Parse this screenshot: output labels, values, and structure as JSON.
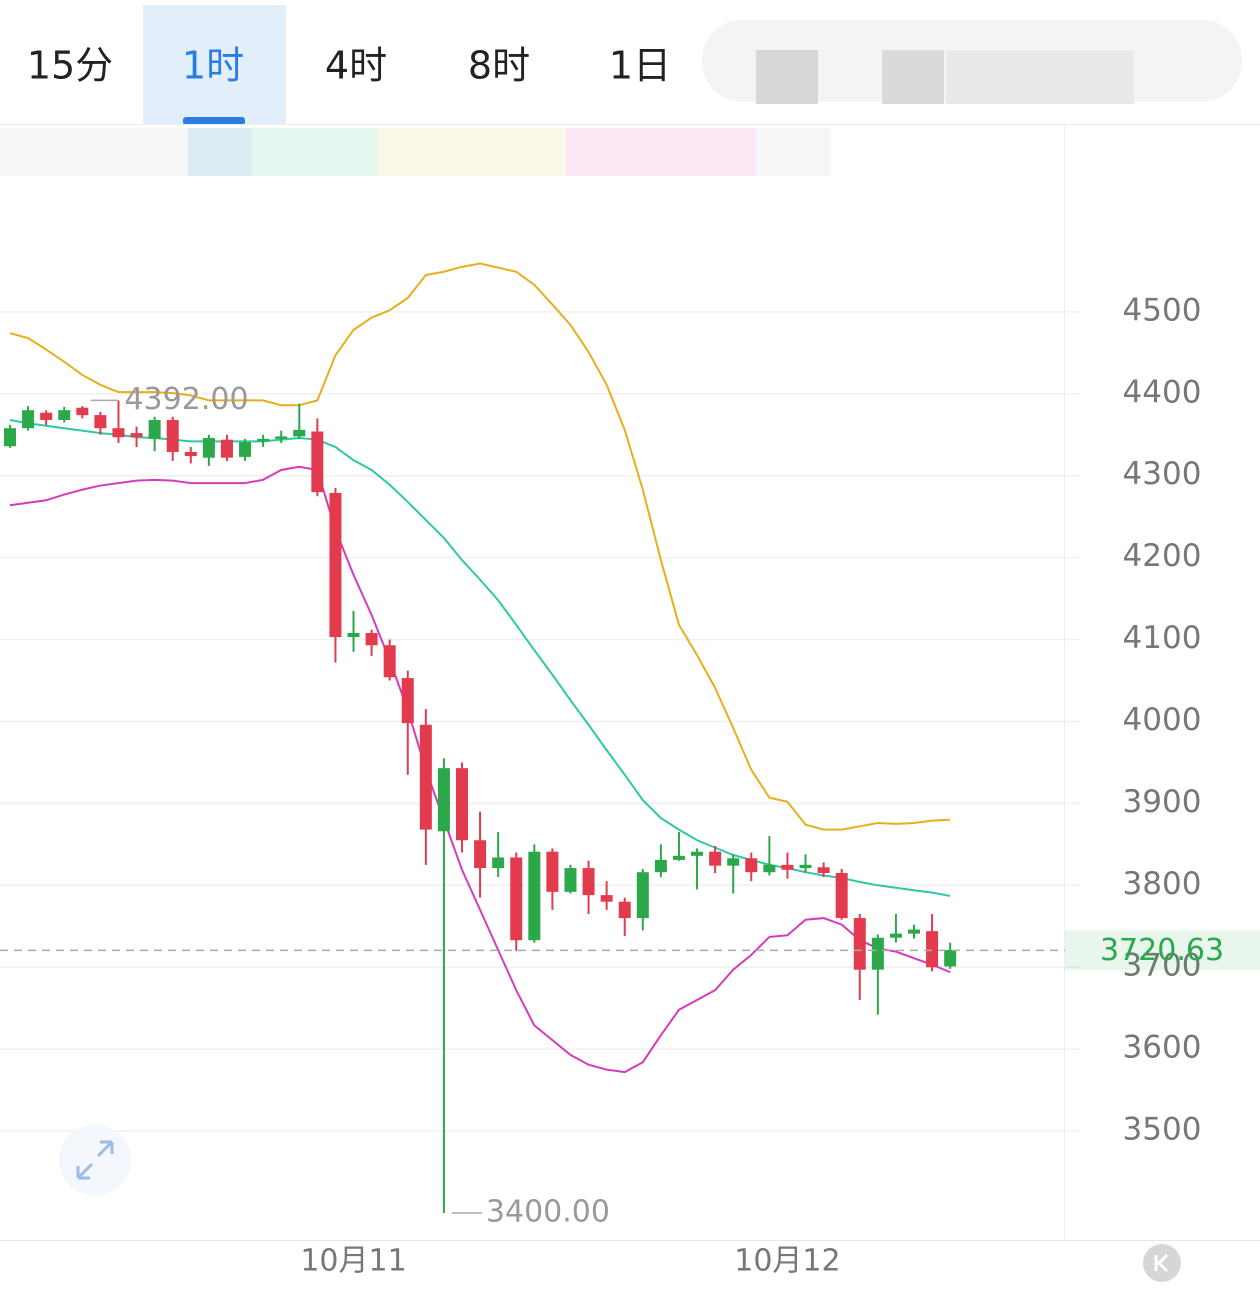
{
  "tabs": {
    "items": [
      "15分",
      "1时",
      "4时",
      "8时",
      "1日"
    ],
    "selected": 1
  },
  "chart_data": {
    "type": "candlestick",
    "categories": [
      null,
      null,
      null,
      null,
      null,
      null,
      null,
      null,
      null,
      null,
      null,
      null,
      null,
      null,
      null,
      null,
      null,
      null,
      null,
      "10月11",
      null,
      null,
      null,
      null,
      null,
      null,
      null,
      null,
      null,
      null,
      null,
      null,
      null,
      null,
      null,
      null,
      null,
      null,
      null,
      null,
      null,
      null,
      null,
      "10月12",
      null,
      null,
      null,
      null,
      null,
      null,
      null,
      null,
      null
    ],
    "open": [
      4336,
      4358,
      4377,
      4368,
      4383,
      4374,
      4358,
      4352,
      4345,
      4368,
      4329,
      4322,
      4344,
      4323,
      4342,
      4345,
      4348,
      4354,
      4279,
      4103,
      4108,
      4093,
      4053,
      3996,
      3866,
      3943,
      3855,
      3821,
      3834,
      3733,
      3841,
      3792,
      3821,
      3788,
      3780,
      3760,
      3816,
      3831,
      3836,
      3841,
      3824,
      3833,
      3816,
      3825,
      3821,
      3822,
      3815,
      3760,
      3697,
      3736,
      3741,
      3744,
      3701
    ],
    "high": [
      4362,
      4385,
      4380,
      4384,
      4385,
      4378,
      4392,
      4360,
      4372,
      4372,
      4335,
      4350,
      4350,
      4345,
      4350,
      4355,
      4388,
      4370,
      4285,
      4135,
      4112,
      4100,
      4062,
      4015,
      3955,
      3950,
      3890,
      3865,
      3840,
      3850,
      3845,
      3825,
      3830,
      3805,
      3785,
      3820,
      3850,
      3865,
      3845,
      3848,
      3838,
      3840,
      3860,
      3840,
      3838,
      3828,
      3820,
      3765,
      3740,
      3765,
      3752,
      3765,
      3730
    ],
    "low": [
      4334,
      4355,
      4362,
      4365,
      4370,
      4350,
      4340,
      4335,
      4330,
      4318,
      4315,
      4312,
      4318,
      4318,
      4335,
      4340,
      4345,
      4275,
      4072,
      4085,
      4080,
      4050,
      3935,
      3825,
      3400,
      3840,
      3785,
      3810,
      3720,
      3730,
      3770,
      3790,
      3765,
      3770,
      3738,
      3745,
      3810,
      3830,
      3795,
      3815,
      3790,
      3805,
      3812,
      3808,
      3815,
      3810,
      3758,
      3660,
      3642,
      3730,
      3735,
      3695,
      3698
    ],
    "close": [
      4358,
      4380,
      4368,
      4380,
      4374,
      4358,
      4347,
      4347,
      4368,
      4329,
      4324,
      4346,
      4322,
      4341,
      4345,
      4348,
      4356,
      4280,
      4103,
      4108,
      4093,
      4054,
      3998,
      3868,
      3943,
      3855,
      3821,
      3834,
      3733,
      3841,
      3792,
      3821,
      3788,
      3780,
      3760,
      3816,
      3831,
      3836,
      3841,
      3824,
      3833,
      3816,
      3825,
      3819,
      3825,
      3815,
      3760,
      3697,
      3736,
      3741,
      3746,
      3700,
      3721
    ],
    "up_color": "#2aa84a",
    "down_color": "#e23b4e",
    "bands": [
      {
        "color": "#e8ae1c",
        "values": [
          4474,
          4468,
          4454,
          4439,
          4423,
          4411,
          4402,
          4402,
          4402,
          4401,
          4398,
          4392,
          4392,
          4392,
          4392,
          4386,
          4386,
          4392,
          4447,
          4478,
          4493,
          4502,
          4517,
          4545,
          4549,
          4555,
          4559,
          4554,
          4549,
          4533,
          4509,
          4484,
          4451,
          4411,
          4356,
          4283,
          4197,
          4118,
          4081,
          4041,
          3992,
          3941,
          3907,
          3902,
          3874,
          3868,
          3868,
          3872,
          3876,
          3875,
          3876,
          3879,
          3880
        ]
      },
      {
        "color": "#2ec9a2",
        "values": [
          4368,
          4364,
          4361,
          4358,
          4355,
          4352,
          4350,
          4347,
          4346,
          4344,
          4342,
          4342,
          4342,
          4342,
          4342,
          4344,
          4346,
          4344,
          4335,
          4319,
          4307,
          4289,
          4268,
          4246,
          4224,
          4197,
          4173,
          4148,
          4118,
          4087,
          4057,
          4026,
          3996,
          3965,
          3935,
          3904,
          3882,
          3868,
          3855,
          3846,
          3837,
          3831,
          3825,
          3821,
          3816,
          3812,
          3809,
          3804,
          3800,
          3797,
          3794,
          3791,
          3787
        ]
      },
      {
        "color": "#d63bbd",
        "values": [
          4264,
          4267,
          4270,
          4277,
          4283,
          4288,
          4291,
          4294,
          4295,
          4294,
          4291,
          4291,
          4291,
          4291,
          4295,
          4307,
          4311,
          4307,
          4234,
          4179,
          4130,
          4075,
          4014,
          3941,
          3880,
          3819,
          3770,
          3721,
          3672,
          3629,
          3611,
          3593,
          3581,
          3575,
          3572,
          3584,
          3617,
          3648,
          3660,
          3672,
          3697,
          3715,
          3737,
          3739,
          3758,
          3760,
          3752,
          3733,
          3723,
          3719,
          3711,
          3703,
          3694
        ]
      }
    ],
    "high_label": {
      "value": 4392,
      "label": "4392.00"
    },
    "low_label": {
      "value": 3400,
      "label": "3400.00"
    },
    "last_price": {
      "value": 3720.63,
      "label": "3720.63",
      "color": "#2aa84a"
    },
    "ylim": [
      3367,
      4661
    ],
    "yticks": [
      3500,
      3600,
      3700,
      3800,
      3900,
      4000,
      4100,
      4200,
      4300,
      4400,
      4500
    ],
    "grid": true
  }
}
